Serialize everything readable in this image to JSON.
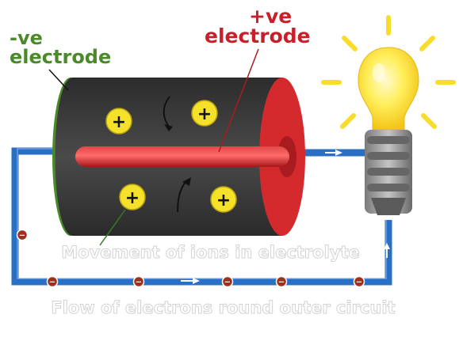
{
  "labels": {
    "negative_electrode": {
      "line1": "-ve",
      "line2": "electrode"
    },
    "positive_electrode": {
      "line1": "+ve",
      "line2": "electrode"
    },
    "ions_caption": "Movement of ions in electrolyte",
    "flow_caption": "Flow of electrons round outer circuit"
  },
  "ions": {
    "symbol": "+",
    "count": 4
  },
  "electrons": {
    "symbol": "−",
    "count": 7
  },
  "colors": {
    "wire": "#2a6fc6",
    "cell_body": "#3a3a3a",
    "positive_electrode": "#d42a2e",
    "negative_electrode": "#4a8a2a",
    "ion": "#f5e12a",
    "electron": "#a0301c",
    "bulb_glass": "#ffe84a",
    "bulb_rays": "#f7dd2a",
    "bulb_base": "#8c8c8c"
  },
  "icons": [
    "lightbulb-icon",
    "arrow-icon"
  ]
}
